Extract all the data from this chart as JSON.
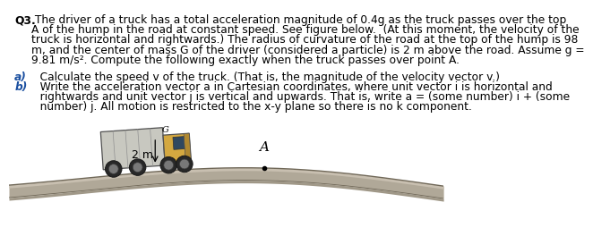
{
  "bg_color": "#ffffff",
  "text_color": "#000000",
  "blue_color": "#1a4fa0",
  "bold_label": "Q3.",
  "para_line1": " The driver of a truck has a total acceleration magnitude of 0.4g as the truck passes over the top",
  "para_line2": "A of the hump in the road at constant speed. See figure below.  (At this moment, the velocity of the",
  "para_line3": "truck is horizontal and rightwards.) The radius of curvature of the road at the top of the hump is 98",
  "para_line4": "m, and the center of mass G of the driver (considered a particle) is 2 m above the road. Assume g =",
  "para_line5": "9.81 m/s². Compute the following exactly when the truck passes over point A.",
  "a_label": "a)",
  "a_text": "   Calculate the speed v of the truck. (That is, the magnitude of the velocity vector v.)",
  "b_label": "b)",
  "b_line1": "   Write the acceleration vector a in Cartesian coordinates, where unit vector i is horizontal and",
  "b_line2": "   rightwards and unit vector j is vertical and upwards. That is, write a = (some number) i + (some",
  "b_line3": "   number) j. All motion is restricted to the x-y plane so there is no k component.",
  "label_A": "A",
  "label_2m": "2 m",
  "road_color_top": "#c8bfb0",
  "road_color_mid": "#b0a898",
  "road_color_bot": "#a09888",
  "road_edge_color": "#706858",
  "fontsize_main": 8.8,
  "fontsize_ab": 8.8
}
